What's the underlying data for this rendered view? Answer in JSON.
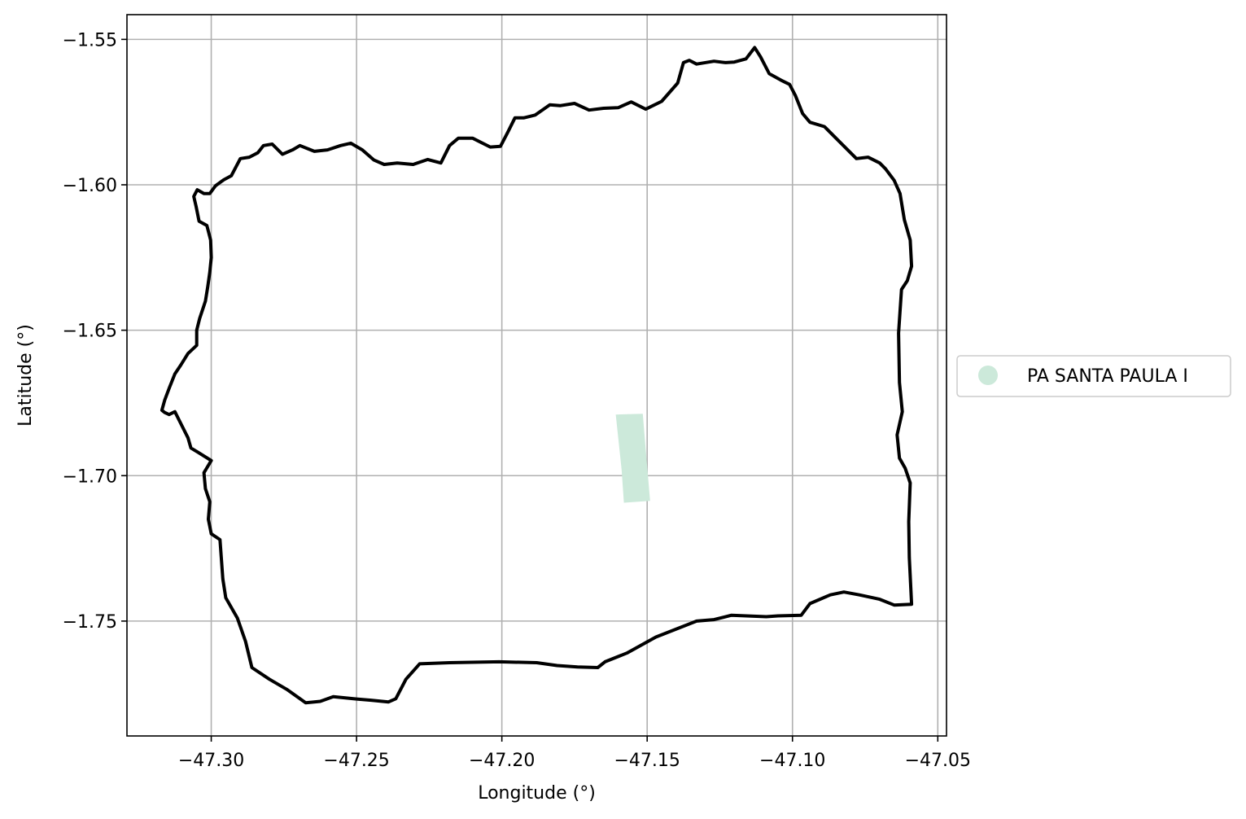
{
  "chart_data": {
    "type": "map",
    "xlabel": "Longitude (°)",
    "ylabel": "Latitude (°)",
    "xlim": [
      -47.329,
      -47.047
    ],
    "ylim": [
      -1.7895,
      -1.5415
    ],
    "grid": true,
    "x_ticks": [
      {
        "value": -47.3,
        "label": "−47.30"
      },
      {
        "value": -47.25,
        "label": "−47.25"
      },
      {
        "value": -47.2,
        "label": "−47.20"
      },
      {
        "value": -47.15,
        "label": "−47.15"
      },
      {
        "value": -47.1,
        "label": "−47.10"
      },
      {
        "value": -47.05,
        "label": "−47.05"
      }
    ],
    "y_ticks": [
      {
        "value": -1.55,
        "label": "−1.55"
      },
      {
        "value": -1.6,
        "label": "−1.60"
      },
      {
        "value": -1.65,
        "label": "−1.65"
      },
      {
        "value": -1.7,
        "label": "−1.70"
      },
      {
        "value": -1.75,
        "label": "−1.75"
      }
    ],
    "legend": {
      "placement": "center-right outside",
      "entries": [
        {
          "label": "PA SANTA PAULA I",
          "color": "#cce9da"
        }
      ]
    },
    "boundary": {
      "color": "#000000",
      "coordinates": [
        [
          -47.2985,
          -1.6003
        ],
        [
          -47.2957,
          -1.5983
        ],
        [
          -47.2931,
          -1.5969
        ],
        [
          -47.29,
          -1.591
        ],
        [
          -47.2869,
          -1.5905
        ],
        [
          -47.284,
          -1.589
        ],
        [
          -47.282,
          -1.5865
        ],
        [
          -47.279,
          -1.586
        ],
        [
          -47.2755,
          -1.5895
        ],
        [
          -47.272,
          -1.588
        ],
        [
          -47.2695,
          -1.5865
        ],
        [
          -47.2645,
          -1.5885
        ],
        [
          -47.26,
          -1.588
        ],
        [
          -47.2555,
          -1.5865
        ],
        [
          -47.252,
          -1.5857
        ],
        [
          -47.248,
          -1.588
        ],
        [
          -47.244,
          -1.5915
        ],
        [
          -47.2405,
          -1.593
        ],
        [
          -47.236,
          -1.5925
        ],
        [
          -47.2305,
          -1.593
        ],
        [
          -47.2255,
          -1.5913
        ],
        [
          -47.221,
          -1.5925
        ],
        [
          -47.218,
          -1.5865
        ],
        [
          -47.215,
          -1.584
        ],
        [
          -47.21,
          -1.584
        ],
        [
          -47.204,
          -1.587
        ],
        [
          -47.2005,
          -1.5868
        ],
        [
          -47.198,
          -1.582
        ],
        [
          -47.1955,
          -1.577
        ],
        [
          -47.1925,
          -1.577
        ],
        [
          -47.1885,
          -1.576
        ],
        [
          -47.1835,
          -1.5725
        ],
        [
          -47.18,
          -1.5728
        ],
        [
          -47.175,
          -1.572
        ],
        [
          -47.17,
          -1.5743
        ],
        [
          -47.165,
          -1.5737
        ],
        [
          -47.16,
          -1.5735
        ],
        [
          -47.1555,
          -1.5715
        ],
        [
          -47.1505,
          -1.574
        ],
        [
          -47.145,
          -1.5713
        ],
        [
          -47.1395,
          -1.565
        ],
        [
          -47.1375,
          -1.558
        ],
        [
          -47.1355,
          -1.5572
        ],
        [
          -47.133,
          -1.5585
        ],
        [
          -47.127,
          -1.5575
        ],
        [
          -47.123,
          -1.558
        ],
        [
          -47.12,
          -1.5578
        ],
        [
          -47.116,
          -1.5567
        ],
        [
          -47.113,
          -1.5528
        ],
        [
          -47.111,
          -1.556
        ],
        [
          -47.108,
          -1.5618
        ],
        [
          -47.104,
          -1.564
        ],
        [
          -47.101,
          -1.5655
        ],
        [
          -47.099,
          -1.5693
        ],
        [
          -47.0965,
          -1.5755
        ],
        [
          -47.094,
          -1.5785
        ],
        [
          -47.089,
          -1.58
        ],
        [
          -47.084,
          -1.585
        ],
        [
          -47.078,
          -1.591
        ],
        [
          -47.074,
          -1.5905
        ],
        [
          -47.07,
          -1.5925
        ],
        [
          -47.068,
          -1.5945
        ],
        [
          -47.065,
          -1.5985
        ],
        [
          -47.063,
          -1.603
        ],
        [
          -47.0615,
          -1.612
        ],
        [
          -47.0595,
          -1.619
        ],
        [
          -47.059,
          -1.628
        ],
        [
          -47.0605,
          -1.633
        ],
        [
          -47.0625,
          -1.636
        ],
        [
          -47.0635,
          -1.651
        ],
        [
          -47.0632,
          -1.668
        ],
        [
          -47.0622,
          -1.678
        ],
        [
          -47.064,
          -1.686
        ],
        [
          -47.0632,
          -1.694
        ],
        [
          -47.0612,
          -1.6975
        ],
        [
          -47.0595,
          -1.7025
        ],
        [
          -47.06,
          -1.7158
        ],
        [
          -47.0598,
          -1.7282
        ],
        [
          -47.059,
          -1.7442
        ],
        [
          -47.065,
          -1.7445
        ],
        [
          -47.07,
          -1.7425
        ],
        [
          -47.077,
          -1.741
        ],
        [
          -47.0823,
          -1.74
        ],
        [
          -47.087,
          -1.741
        ],
        [
          -47.094,
          -1.744
        ],
        [
          -47.097,
          -1.748
        ],
        [
          -47.105,
          -1.7482
        ],
        [
          -47.109,
          -1.7485
        ],
        [
          -47.121,
          -1.748
        ],
        [
          -47.127,
          -1.7495
        ],
        [
          -47.133,
          -1.75
        ],
        [
          -47.147,
          -1.7555
        ],
        [
          -47.157,
          -1.761
        ],
        [
          -47.1645,
          -1.764
        ],
        [
          -47.167,
          -1.766
        ],
        [
          -47.174,
          -1.7658
        ],
        [
          -47.181,
          -1.7653
        ],
        [
          -47.188,
          -1.7643
        ],
        [
          -47.201,
          -1.764
        ],
        [
          -47.218,
          -1.7643
        ],
        [
          -47.2283,
          -1.7647
        ],
        [
          -47.233,
          -1.77
        ],
        [
          -47.2365,
          -1.7767
        ],
        [
          -47.239,
          -1.7778
        ],
        [
          -47.245,
          -1.7772
        ],
        [
          -47.25,
          -1.7768
        ],
        [
          -47.258,
          -1.776
        ],
        [
          -47.2625,
          -1.7776
        ],
        [
          -47.2675,
          -1.7781
        ],
        [
          -47.274,
          -1.7735
        ],
        [
          -47.28,
          -1.77
        ],
        [
          -47.286,
          -1.766
        ],
        [
          -47.2882,
          -1.757
        ],
        [
          -47.291,
          -1.749
        ],
        [
          -47.295,
          -1.742
        ],
        [
          -47.296,
          -1.7355
        ],
        [
          -47.297,
          -1.722
        ],
        [
          -47.3,
          -1.72
        ],
        [
          -47.301,
          -1.715
        ],
        [
          -47.3005,
          -1.709
        ],
        [
          -47.302,
          -1.7045
        ],
        [
          -47.3025,
          -1.699
        ],
        [
          -47.3,
          -1.6948
        ],
        [
          -47.3045,
          -1.692
        ],
        [
          -47.307,
          -1.6905
        ],
        [
          -47.308,
          -1.687
        ],
        [
          -47.31,
          -1.683
        ],
        [
          -47.3125,
          -1.678
        ],
        [
          -47.3145,
          -1.679
        ],
        [
          -47.316,
          -1.6783
        ],
        [
          -47.317,
          -1.6775
        ],
        [
          -47.316,
          -1.674
        ],
        [
          -47.3145,
          -1.67
        ],
        [
          -47.3125,
          -1.665
        ],
        [
          -47.3105,
          -1.662
        ],
        [
          -47.308,
          -1.658
        ],
        [
          -47.305,
          -1.6552
        ],
        [
          -47.305,
          -1.65
        ],
        [
          -47.304,
          -1.646
        ],
        [
          -47.302,
          -1.64
        ],
        [
          -47.3012,
          -1.635
        ],
        [
          -47.3005,
          -1.63
        ],
        [
          -47.3,
          -1.625
        ],
        [
          -47.3002,
          -1.619
        ],
        [
          -47.3015,
          -1.614
        ],
        [
          -47.3042,
          -1.6125
        ],
        [
          -47.3052,
          -1.6075
        ],
        [
          -47.306,
          -1.604
        ],
        [
          -47.3048,
          -1.6017
        ],
        [
          -47.3025,
          -1.603
        ],
        [
          -47.3005,
          -1.603
        ],
        [
          -47.2985,
          -1.6003
        ]
      ]
    },
    "features": [
      {
        "name": "PA SANTA PAULA I",
        "color": "#cce9da",
        "coordinates": [
          [
            -47.1608,
            -1.679
          ],
          [
            -47.1515,
            -1.6787
          ],
          [
            -47.1505,
            -1.691
          ],
          [
            -47.149,
            -1.7087
          ],
          [
            -47.158,
            -1.7093
          ],
          [
            -47.1588,
            -1.698
          ],
          [
            -47.1608,
            -1.679
          ]
        ]
      }
    ]
  }
}
